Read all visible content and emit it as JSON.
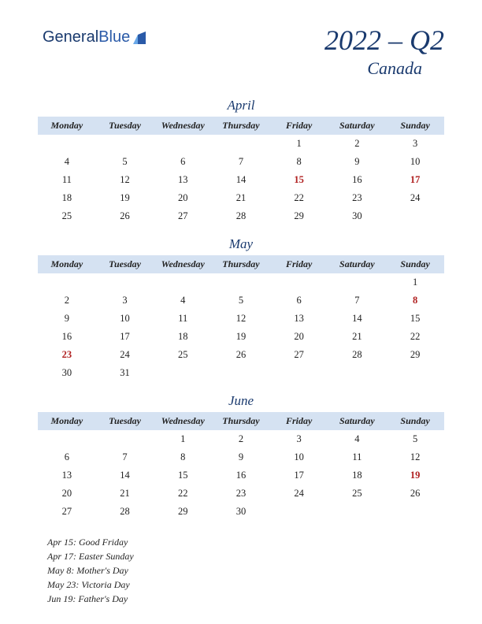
{
  "logo": {
    "text1": "General",
    "text2": "Blue"
  },
  "header": {
    "title": "2022 – Q2",
    "region": "Canada"
  },
  "day_headers": [
    "Monday",
    "Tuesday",
    "Wednesday",
    "Thursday",
    "Friday",
    "Saturday",
    "Sunday"
  ],
  "colors": {
    "header_bg": "#d5e2f2",
    "text_dark": "#1a3a6e",
    "holiday": "#b02020",
    "page_bg": "#ffffff"
  },
  "months": [
    {
      "name": "April",
      "weeks": [
        [
          null,
          null,
          null,
          null,
          {
            "d": 1
          },
          {
            "d": 2
          },
          {
            "d": 3
          }
        ],
        [
          {
            "d": 4
          },
          {
            "d": 5
          },
          {
            "d": 6
          },
          {
            "d": 7
          },
          {
            "d": 8
          },
          {
            "d": 9
          },
          {
            "d": 10
          }
        ],
        [
          {
            "d": 11
          },
          {
            "d": 12
          },
          {
            "d": 13
          },
          {
            "d": 14
          },
          {
            "d": 15,
            "h": true
          },
          {
            "d": 16
          },
          {
            "d": 17,
            "h": true
          }
        ],
        [
          {
            "d": 18
          },
          {
            "d": 19
          },
          {
            "d": 20
          },
          {
            "d": 21
          },
          {
            "d": 22
          },
          {
            "d": 23
          },
          {
            "d": 24
          }
        ],
        [
          {
            "d": 25
          },
          {
            "d": 26
          },
          {
            "d": 27
          },
          {
            "d": 28
          },
          {
            "d": 29
          },
          {
            "d": 30
          },
          null
        ]
      ]
    },
    {
      "name": "May",
      "weeks": [
        [
          null,
          null,
          null,
          null,
          null,
          null,
          {
            "d": 1
          }
        ],
        [
          {
            "d": 2
          },
          {
            "d": 3
          },
          {
            "d": 4
          },
          {
            "d": 5
          },
          {
            "d": 6
          },
          {
            "d": 7
          },
          {
            "d": 8,
            "h": true
          }
        ],
        [
          {
            "d": 9
          },
          {
            "d": 10
          },
          {
            "d": 11
          },
          {
            "d": 12
          },
          {
            "d": 13
          },
          {
            "d": 14
          },
          {
            "d": 15
          }
        ],
        [
          {
            "d": 16
          },
          {
            "d": 17
          },
          {
            "d": 18
          },
          {
            "d": 19
          },
          {
            "d": 20
          },
          {
            "d": 21
          },
          {
            "d": 22
          }
        ],
        [
          {
            "d": 23,
            "h": true
          },
          {
            "d": 24
          },
          {
            "d": 25
          },
          {
            "d": 26
          },
          {
            "d": 27
          },
          {
            "d": 28
          },
          {
            "d": 29
          }
        ],
        [
          {
            "d": 30
          },
          {
            "d": 31
          },
          null,
          null,
          null,
          null,
          null
        ]
      ]
    },
    {
      "name": "June",
      "weeks": [
        [
          null,
          null,
          {
            "d": 1
          },
          {
            "d": 2
          },
          {
            "d": 3
          },
          {
            "d": 4
          },
          {
            "d": 5
          }
        ],
        [
          {
            "d": 6
          },
          {
            "d": 7
          },
          {
            "d": 8
          },
          {
            "d": 9
          },
          {
            "d": 10
          },
          {
            "d": 11
          },
          {
            "d": 12
          }
        ],
        [
          {
            "d": 13
          },
          {
            "d": 14
          },
          {
            "d": 15
          },
          {
            "d": 16
          },
          {
            "d": 17
          },
          {
            "d": 18
          },
          {
            "d": 19,
            "h": true
          }
        ],
        [
          {
            "d": 20
          },
          {
            "d": 21
          },
          {
            "d": 22
          },
          {
            "d": 23
          },
          {
            "d": 24
          },
          {
            "d": 25
          },
          {
            "d": 26
          }
        ],
        [
          {
            "d": 27
          },
          {
            "d": 28
          },
          {
            "d": 29
          },
          {
            "d": 30
          },
          null,
          null,
          null
        ]
      ]
    }
  ],
  "holiday_list": [
    "Apr 15: Good Friday",
    "Apr 17: Easter Sunday",
    "May 8: Mother's Day",
    "May 23: Victoria Day",
    "Jun 19: Father's Day"
  ]
}
